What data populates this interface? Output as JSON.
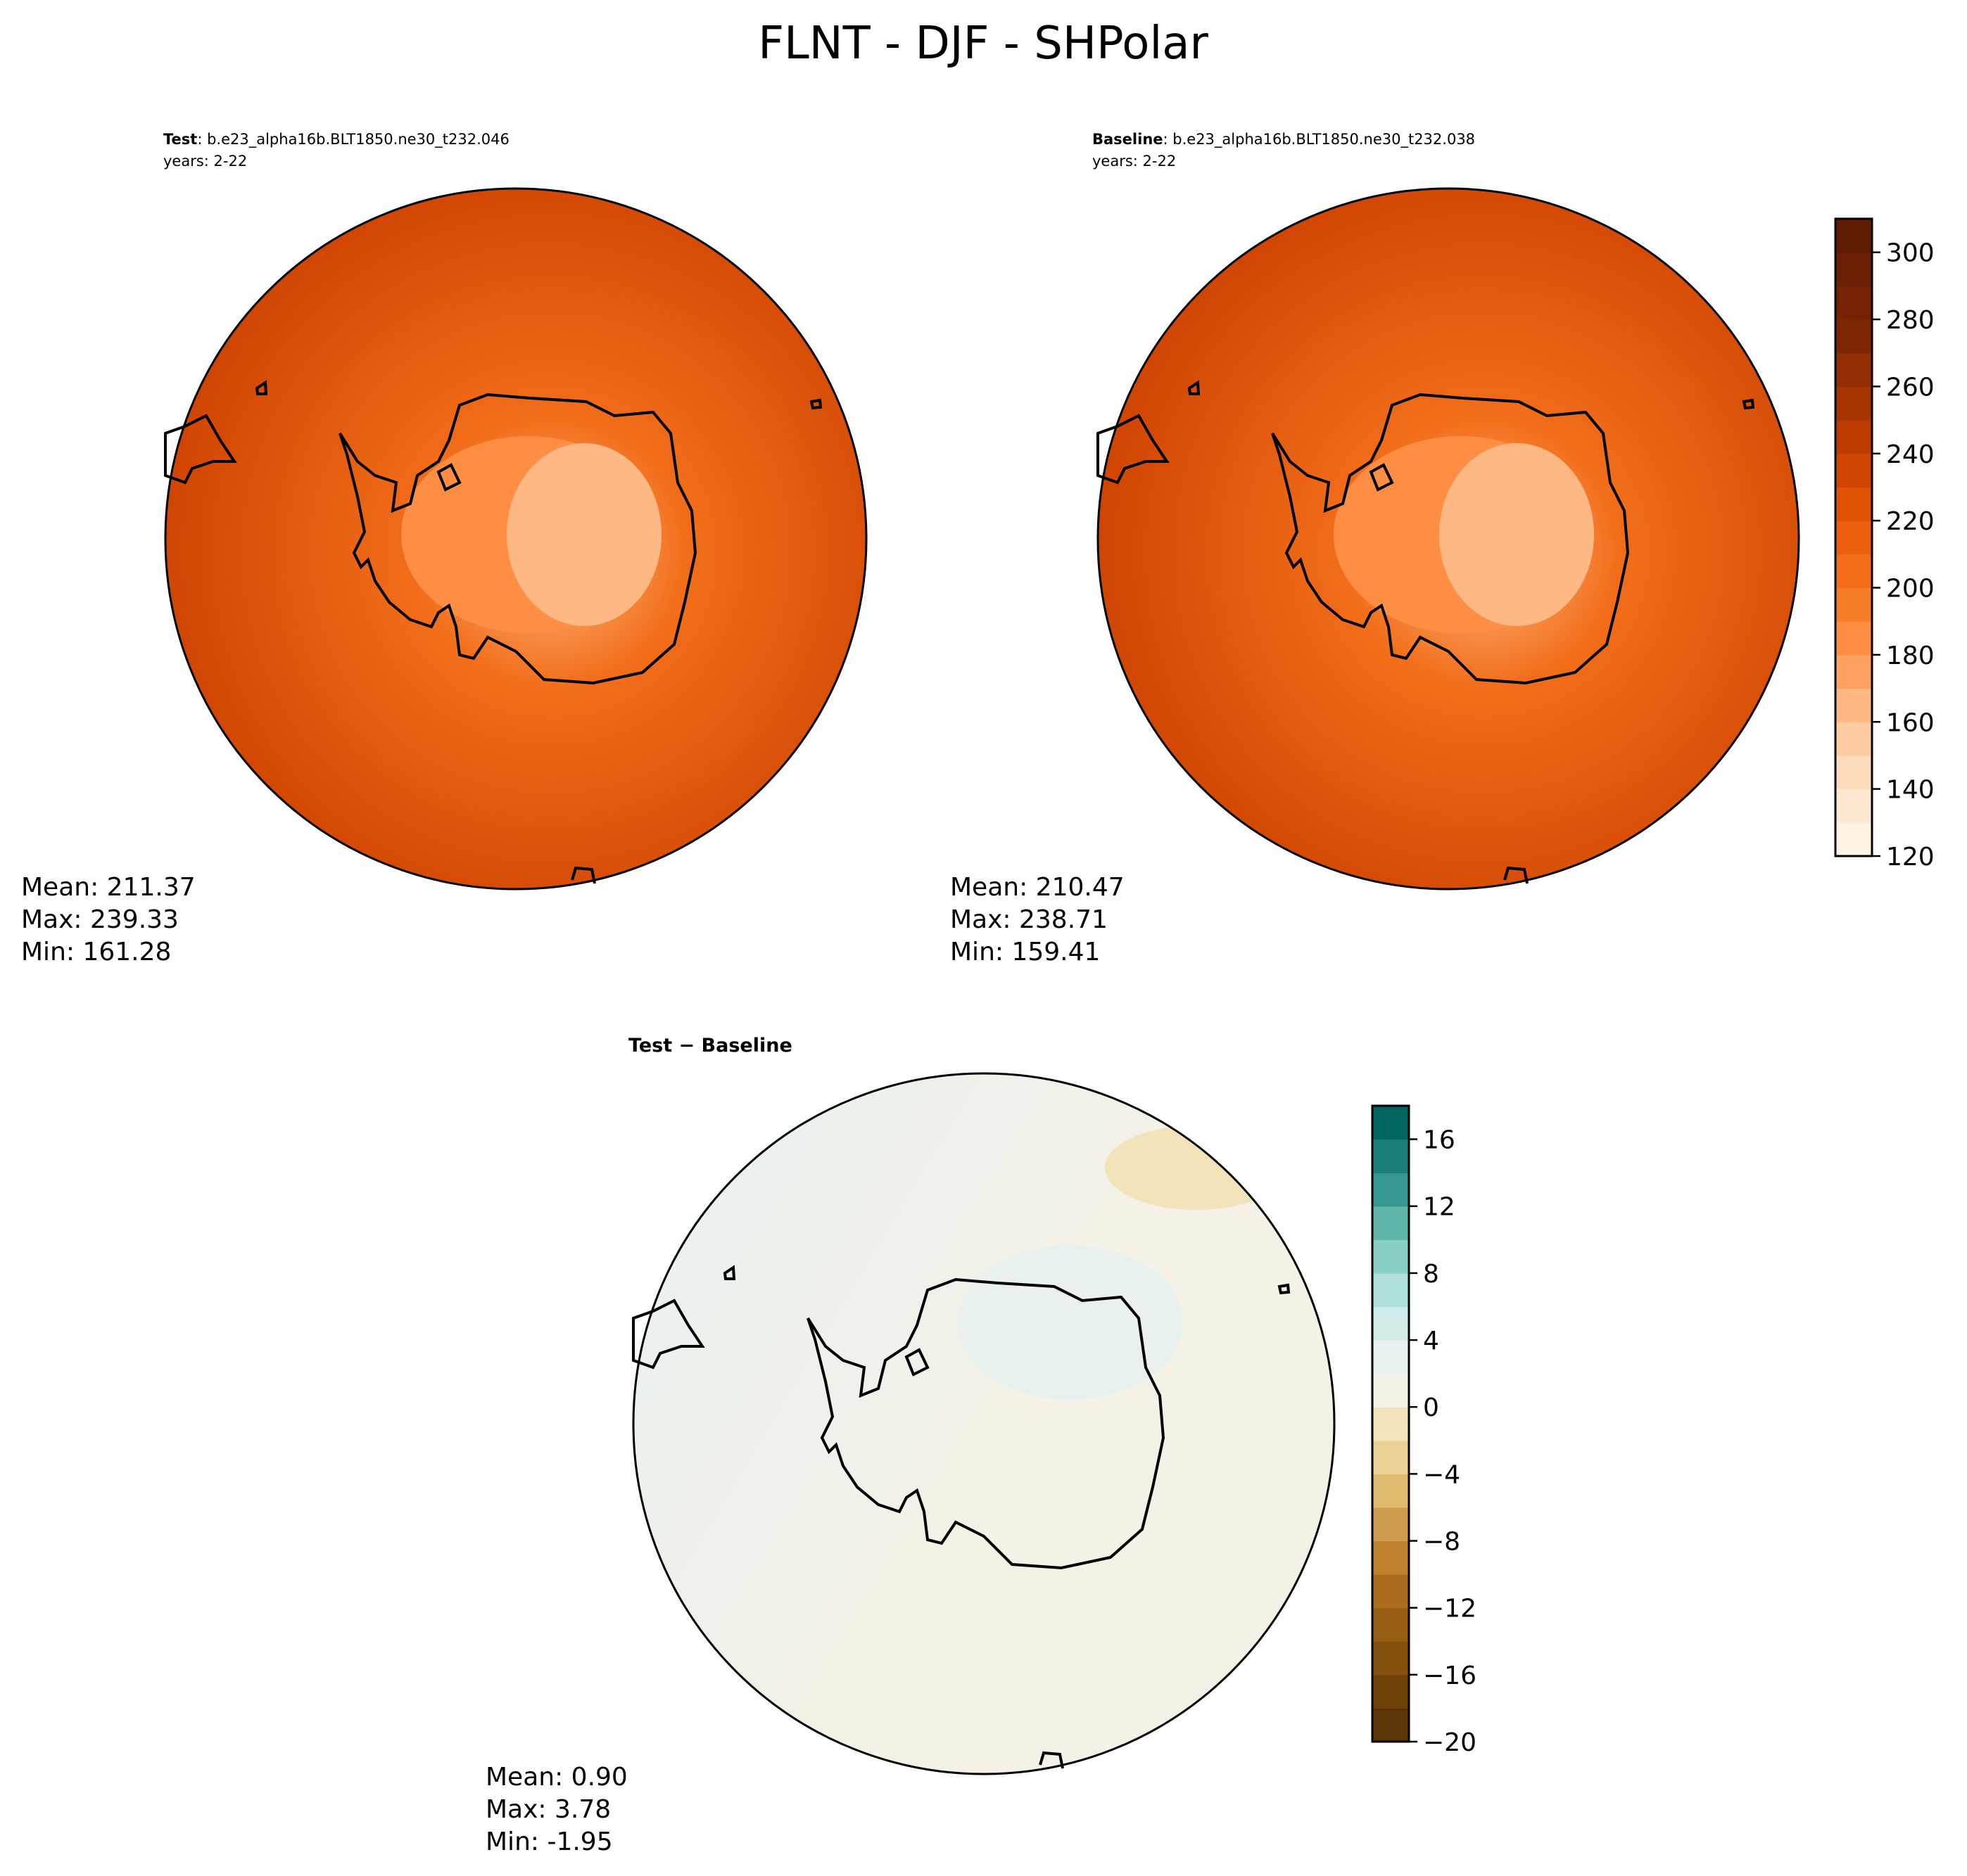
{
  "figure": {
    "title": "FLNT - DJF - SHPolar"
  },
  "chart_data": [
    {
      "type": "heatmap",
      "panel": "test",
      "label_bold": "Test",
      "label_rest": ": b.e23_alpha16b.BLT1850.ne30_t232.046",
      "years": "years: 2-22",
      "stats": {
        "mean": "Mean: 211.37",
        "max": "Max: 239.33",
        "min": "Min: 161.28"
      },
      "field": {
        "center_value": 168,
        "mid_value": 205,
        "edge_value": 236
      }
    },
    {
      "type": "heatmap",
      "panel": "baseline",
      "label_bold": "Baseline",
      "label_rest": ": b.e23_alpha16b.BLT1850.ne30_t232.038",
      "years": "years: 2-22",
      "stats": {
        "mean": "Mean: 210.47",
        "max": "Max: 238.71",
        "min": "Min: 159.41"
      },
      "field": {
        "center_value": 166,
        "mid_value": 204,
        "edge_value": 235
      },
      "colorbar": {
        "range": [
          120,
          310
        ],
        "levels": [
          120,
          130,
          140,
          150,
          160,
          170,
          180,
          190,
          200,
          210,
          220,
          230,
          240,
          250,
          260,
          270,
          280,
          290,
          300,
          310
        ],
        "ticks": [
          "120",
          "140",
          "160",
          "180",
          "200",
          "220",
          "240",
          "260",
          "280",
          "300"
        ],
        "colors": [
          "#fff3e6",
          "#fee8d2",
          "#fedcbb",
          "#fdcca2",
          "#fdb883",
          "#fda262",
          "#fd8e43",
          "#f87d2a",
          "#f26e1a",
          "#ea600e",
          "#e05206",
          "#d04502",
          "#bc3c02",
          "#a63503",
          "#922e04",
          "#7f2704",
          "#752304",
          "#6b1f04",
          "#601c03"
        ]
      }
    },
    {
      "type": "heatmap",
      "panel": "difference",
      "label": "Test − Baseline",
      "stats": {
        "mean": "Mean:  0.90",
        "max": "Max:  3.78",
        "min": "Min: -1.95"
      },
      "field": {
        "west_value": 2.5,
        "east_value": 0.5,
        "north_east_value": -0.8
      },
      "colorbar": {
        "range": [
          -20,
          18
        ],
        "levels": [
          -20,
          -18,
          -16,
          -14,
          -12,
          -10,
          -8,
          -6,
          -4,
          -2,
          0,
          2,
          4,
          6,
          8,
          10,
          12,
          14,
          16,
          18
        ],
        "ticks": [
          "−20",
          "−16",
          "−12",
          "−8",
          "−4",
          "0",
          "4",
          "8",
          "12",
          "16"
        ],
        "colors": [
          "#5a3505",
          "#6e4109",
          "#83500e",
          "#975e14",
          "#ab6d1d",
          "#bf812d",
          "#cf9d4f",
          "#dfbb70",
          "#ead195",
          "#f2e3ba",
          "#f5f1e6",
          "#e8f1ef",
          "#d1ece8",
          "#afdfd9",
          "#8ad0c4",
          "#5fb5aa",
          "#35978f",
          "#1a7f77",
          "#01665e",
          "#003c30"
        ]
      }
    }
  ]
}
